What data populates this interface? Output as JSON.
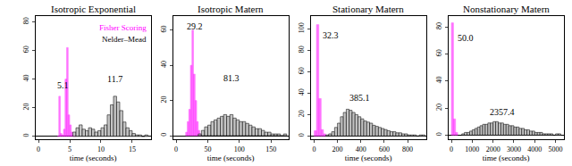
{
  "chart_data": [
    {
      "type": "histogram",
      "title": "Isotropic Exponential",
      "x_label": "time (seconds)",
      "xlim": [
        -0.5,
        18
      ],
      "xticks": [
        0,
        5,
        10,
        15
      ],
      "ylim": [
        -2,
        84
      ],
      "yticks": [
        0,
        20,
        40,
        60,
        80
      ],
      "legend": "top right",
      "series": [
        {
          "name": "Fisher Scoring",
          "color": "#ff00ff",
          "bins": [
            3.0,
            3.25,
            3.5,
            3.75,
            4.0,
            4.25,
            4.5,
            4.75,
            5.0,
            5.25,
            5.5,
            5.75,
            6.0
          ],
          "counts": [
            0,
            28,
            2,
            1,
            5,
            40,
            62,
            15,
            8,
            3,
            1,
            1
          ]
        },
        {
          "name": "Nelder–Mead",
          "color": "#bebebe",
          "bins": [
            5.5,
            6.0,
            6.5,
            7.0,
            7.5,
            8.0,
            8.5,
            9.0,
            9.5,
            10.0,
            10.5,
            11.0,
            11.5,
            12.0,
            12.5,
            13.0,
            13.5,
            14.0,
            14.5,
            15.0,
            15.5,
            16.0,
            16.5,
            17.0,
            17.5
          ],
          "counts": [
            3,
            6,
            8,
            5,
            4,
            6,
            5,
            3,
            4,
            6,
            8,
            15,
            22,
            28,
            24,
            18,
            10,
            6,
            4,
            2,
            1,
            1,
            0,
            1
          ]
        }
      ],
      "annotations": [
        {
          "text": "5.1",
          "x": 3.9,
          "y": 36
        },
        {
          "text": "11.7",
          "x": 12.2,
          "y": 40
        }
      ]
    },
    {
      "type": "histogram",
      "title": "Isotropic Matern",
      "x_label": "time (seconds)",
      "xlim": [
        -5,
        178
      ],
      "xticks": [
        0,
        50,
        100,
        150
      ],
      "ylim": [
        -2,
        68
      ],
      "yticks": [
        0,
        20,
        40,
        60
      ],
      "series": [
        {
          "color": "#ff00ff",
          "bins": [
            15,
            17.5,
            20,
            22.5,
            25,
            27.5,
            30,
            32.5,
            35,
            37.5,
            40
          ],
          "counts": [
            2,
            8,
            15,
            40,
            60,
            35,
            20,
            8,
            3,
            1
          ]
        },
        {
          "color": "#bebebe",
          "bins": [
            35,
            40,
            45,
            50,
            55,
            60,
            65,
            70,
            75,
            80,
            85,
            90,
            95,
            100,
            105,
            110,
            115,
            120,
            125,
            130,
            135,
            140,
            145,
            150,
            155,
            160,
            165,
            170,
            175
          ],
          "counts": [
            1,
            3,
            5,
            6,
            8,
            9,
            10,
            11,
            12,
            11,
            12,
            10,
            9,
            8,
            8,
            7,
            6,
            5,
            4,
            4,
            3,
            2,
            2,
            1,
            1,
            1,
            0,
            1
          ]
        }
      ],
      "annotations": [
        {
          "text": "29.2",
          "x": 29,
          "y": 62
        },
        {
          "text": "81.3",
          "x": 88,
          "y": 33
        }
      ]
    },
    {
      "type": "histogram",
      "title": "Stationary Matern",
      "x_label": "time (seconds)",
      "xlim": [
        -30,
        960
      ],
      "xticks": [
        0,
        200,
        400,
        600,
        800
      ],
      "ylim": [
        -3,
        112
      ],
      "yticks": [
        0,
        20,
        40,
        60,
        80,
        100
      ],
      "series": [
        {
          "color": "#ff00ff",
          "bins": [
            0,
            20,
            40,
            60,
            80,
            100
          ],
          "counts": [
            5,
            104,
            35,
            6,
            2
          ]
        },
        {
          "color": "#bebebe",
          "bins": [
            100,
            125,
            150,
            175,
            200,
            225,
            250,
            275,
            300,
            325,
            350,
            375,
            400,
            425,
            450,
            475,
            500,
            525,
            550,
            575,
            600,
            625,
            650,
            675,
            700,
            725,
            750,
            775,
            800,
            825,
            850,
            875,
            900,
            925,
            950
          ],
          "counts": [
            1,
            2,
            4,
            8,
            12,
            18,
            22,
            25,
            24,
            22,
            20,
            18,
            16,
            14,
            13,
            12,
            10,
            9,
            8,
            7,
            6,
            5,
            4,
            4,
            3,
            3,
            2,
            2,
            1,
            1,
            1,
            0,
            1,
            1
          ]
        }
      ],
      "annotations": [
        {
          "text": "32.3",
          "x": 145,
          "y": 94
        },
        {
          "text": "385.1",
          "x": 390,
          "y": 36
        }
      ]
    },
    {
      "type": "histogram",
      "title": "Nonstationary Matern",
      "x_label": "time (seconds)",
      "xlim": [
        -150,
        5400
      ],
      "xticks": [
        0,
        1000,
        2000,
        3000,
        4000,
        5000
      ],
      "ylim": [
        -3,
        88
      ],
      "yticks": [
        0,
        20,
        40,
        60,
        80
      ],
      "series": [
        {
          "color": "#ff00ff",
          "bins": [
            0,
            100,
            200,
            300
          ],
          "counts": [
            83,
            12,
            2
          ]
        },
        {
          "color": "#bebebe",
          "bins": [
            500,
            625,
            750,
            875,
            1000,
            1125,
            1250,
            1375,
            1500,
            1625,
            1750,
            1875,
            2000,
            2125,
            2250,
            2375,
            2500,
            2625,
            2750,
            2875,
            3000,
            3125,
            3250,
            3375,
            3500,
            3625,
            3750,
            3875,
            4000,
            4125,
            4250,
            4375,
            4500,
            4625,
            4750,
            4875,
            5000,
            5125,
            5250
          ],
          "counts": [
            1,
            2,
            2,
            3,
            4,
            5,
            6,
            7,
            8,
            8,
            9,
            9,
            10,
            10,
            9,
            9,
            8,
            8,
            7,
            7,
            6,
            6,
            5,
            5,
            4,
            4,
            3,
            3,
            2,
            2,
            2,
            1,
            1,
            1,
            1,
            0,
            1,
            1
          ]
        }
      ],
      "annotations": [
        {
          "text": "50.0",
          "x": 700,
          "y": 72
        },
        {
          "text": "2357.4",
          "x": 2450,
          "y": 17
        }
      ]
    }
  ]
}
